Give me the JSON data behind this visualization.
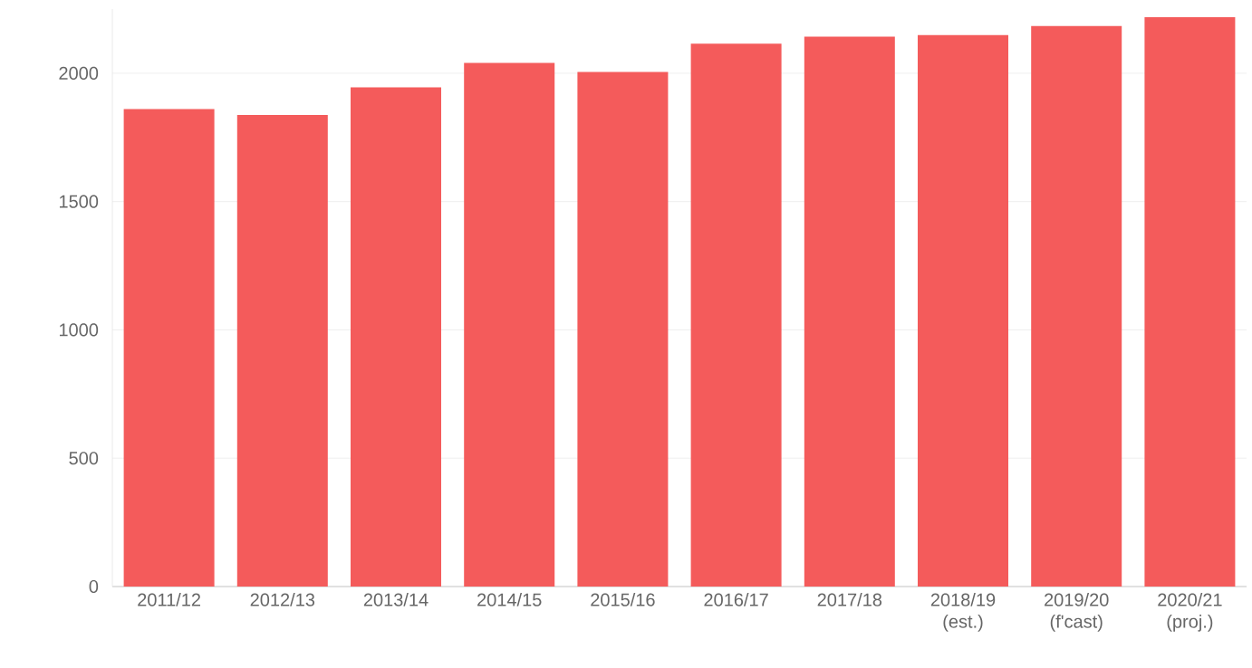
{
  "chart_data": {
    "type": "bar",
    "categories": [
      "2011/12",
      "2012/13",
      "2013/14",
      "2014/15",
      "2015/16",
      "2016/17",
      "2017/18",
      "2018/19 (est.)",
      "2019/20 (f'cast)",
      "2020/21 (proj.)"
    ],
    "values": [
      1860,
      1837,
      1945,
      2040,
      2005,
      2115,
      2142,
      2149,
      2184,
      2218
    ],
    "color": "#f45b5b",
    "ylim": [
      0,
      2250
    ],
    "yticks": [
      0,
      500,
      1000,
      1500,
      2000
    ],
    "grid": "y"
  }
}
